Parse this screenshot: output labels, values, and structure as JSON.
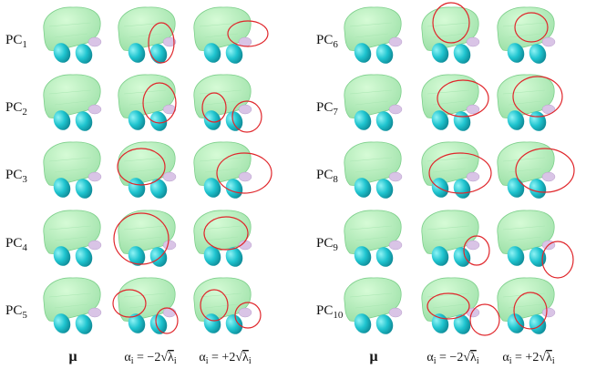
{
  "left_panel": {
    "rows": [
      {
        "label": "PC",
        "sub": "1"
      },
      {
        "label": "PC",
        "sub": "2"
      },
      {
        "label": "PC",
        "sub": "3"
      },
      {
        "label": "PC",
        "sub": "4"
      },
      {
        "label": "PC",
        "sub": "5"
      }
    ],
    "columns": [
      {
        "label": "μ"
      },
      {
        "alpha": "α",
        "alpha_sub": "i",
        "eq": " = −2",
        "root": "√",
        "lambda": "λ",
        "lambda_sub": "i"
      },
      {
        "alpha": "α",
        "alpha_sub": "i",
        "eq": " = +2",
        "root": "√",
        "lambda": "λ",
        "lambda_sub": "i"
      }
    ]
  },
  "right_panel": {
    "rows": [
      {
        "label": "PC",
        "sub": "6"
      },
      {
        "label": "PC",
        "sub": "7"
      },
      {
        "label": "PC",
        "sub": "8"
      },
      {
        "label": "PC",
        "sub": "9"
      },
      {
        "label": "PC",
        "sub": "10"
      }
    ],
    "columns": [
      {
        "label": "μ"
      },
      {
        "alpha": "α",
        "alpha_sub": "i",
        "eq": " = −2",
        "root": "√",
        "lambda": "λ",
        "lambda_sub": "i"
      },
      {
        "alpha": "α",
        "alpha_sub": "i",
        "eq": " = +2",
        "root": "√",
        "lambda": "λ",
        "lambda_sub": "i"
      }
    ]
  }
}
